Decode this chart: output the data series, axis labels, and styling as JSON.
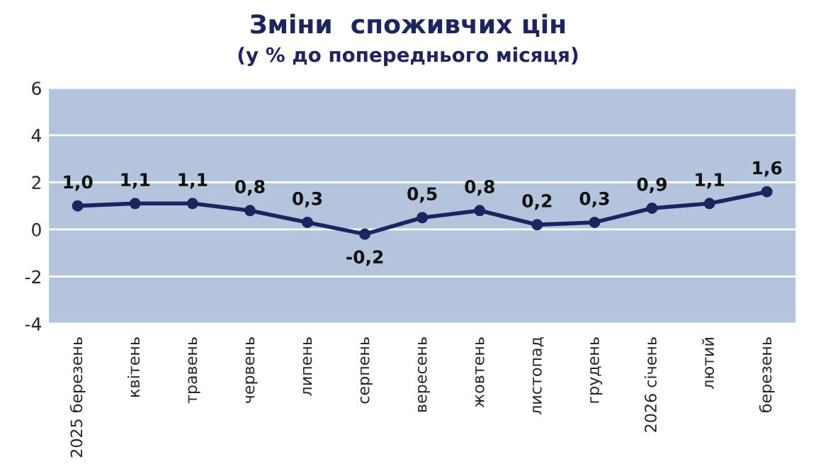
{
  "chart_data": {
    "type": "line",
    "title": "Зміни  споживчих цін",
    "subtitle": "(у % до попереднього місяця)",
    "categories": [
      "2025 березень",
      "квітень",
      "травень",
      "червень",
      "липень",
      "серпень",
      "вересень",
      "жовтень",
      "листопад",
      "грудень",
      "2026 січень",
      "лютий",
      "березень"
    ],
    "series": [
      {
        "color": "#1c2560",
        "values": [
          1.0,
          1.1,
          1.1,
          0.8,
          0.3,
          -0.2,
          0.5,
          0.8,
          0.2,
          0.3,
          0.9,
          1.1,
          1.6
        ],
        "value_labels": [
          "1,0",
          "1,1",
          "1,1",
          "0,8",
          "0,3",
          "-0,2",
          "0,5",
          "0,8",
          "0,2",
          "0,3",
          "0,9",
          "1,1",
          "1,6"
        ]
      }
    ],
    "ylim": [
      -4,
      6
    ],
    "yticks": [
      -4,
      -2,
      0,
      2,
      4,
      6
    ],
    "grid": "y",
    "marker": "circle",
    "line_style": "solid",
    "legend": false
  }
}
